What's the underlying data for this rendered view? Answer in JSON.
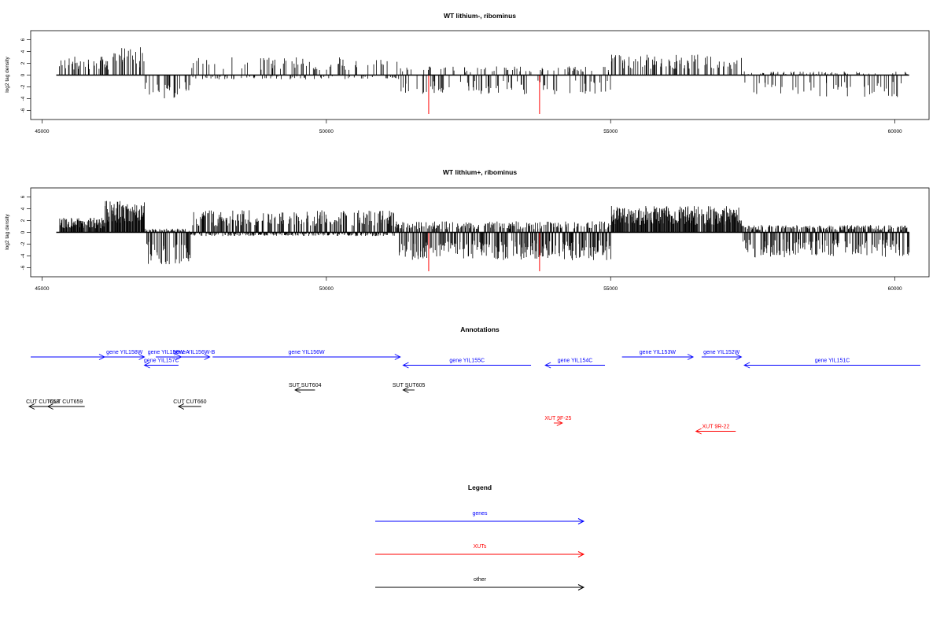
{
  "panels": [
    {
      "title": "WT lithium-, ribominus",
      "ylabel": "log2 tag density",
      "xticks": [
        45000,
        50000,
        55000,
        60000
      ],
      "yticks": [
        -6,
        -4,
        -2,
        0,
        2,
        4,
        6
      ]
    },
    {
      "title": "WT lithium+, ribominus",
      "ylabel": "log2 tag density",
      "xticks": [
        45000,
        50000,
        55000,
        60000
      ],
      "yticks": [
        -6,
        -4,
        -2,
        0,
        2,
        4,
        6
      ]
    }
  ],
  "chart_data": [
    {
      "type": "bar",
      "title": "WT lithium-, ribominus",
      "ylabel": "log2 tag density",
      "xlim": [
        44800,
        60600
      ],
      "ylim": [
        -7,
        7
      ],
      "baseline_range": [
        45250,
        60250
      ],
      "density": 0.35,
      "seed": 11,
      "regions": [
        {
          "from": 45300,
          "to": 46200,
          "pos": 2.5,
          "neg": 0
        },
        {
          "from": 46200,
          "to": 46800,
          "pos": 3.8,
          "neg": 0
        },
        {
          "from": 46800,
          "to": 47600,
          "pos": 0,
          "neg": -3.2
        },
        {
          "from": 47600,
          "to": 51300,
          "pos": 2.4,
          "neg": -0.6
        },
        {
          "from": 51300,
          "to": 55000,
          "pos": 1.2,
          "neg": -2.6
        },
        {
          "from": 55000,
          "to": 57300,
          "pos": 2.8,
          "neg": 0
        },
        {
          "from": 57300,
          "to": 60250,
          "pos": 0.5,
          "neg": -3.0
        }
      ],
      "highlights": [
        {
          "x": 51800,
          "value": -6.6,
          "color": "#ff0000"
        },
        {
          "x": 53750,
          "value": -6.6,
          "color": "#ff0000"
        }
      ]
    },
    {
      "type": "bar",
      "title": "WT lithium+, ribominus",
      "ylabel": "log2 tag density",
      "xlim": [
        44800,
        60600
      ],
      "ylim": [
        -7,
        7
      ],
      "baseline_range": [
        45250,
        60250
      ],
      "density": 0.95,
      "seed": 29,
      "regions": [
        {
          "from": 45300,
          "to": 46100,
          "pos": 2.0,
          "neg": 0
        },
        {
          "from": 46100,
          "to": 46800,
          "pos": 4.3,
          "neg": 0
        },
        {
          "from": 46800,
          "to": 47600,
          "pos": 0.5,
          "neg": -4.5
        },
        {
          "from": 47600,
          "to": 51200,
          "pos": 3.0,
          "neg": -0.5
        },
        {
          "from": 51200,
          "to": 55000,
          "pos": 1.5,
          "neg": -3.8
        },
        {
          "from": 55000,
          "to": 57300,
          "pos": 3.6,
          "neg": 0
        },
        {
          "from": 57300,
          "to": 60250,
          "pos": 1.0,
          "neg": -3.4
        }
      ],
      "highlights": [
        {
          "x": 51800,
          "value": -6.6,
          "color": "#ff0000"
        },
        {
          "x": 53750,
          "value": -6.6,
          "color": "#ff0000"
        }
      ]
    }
  ],
  "annotations": {
    "title": "Annotations",
    "xlim": [
      44800,
      60600
    ],
    "items": [
      {
        "label": "",
        "from": 44800,
        "to": 46100,
        "dir": "right",
        "row": 0,
        "color": "#0000ff"
      },
      {
        "label": "gene YIL158W",
        "from": 46100,
        "to": 46800,
        "dir": "right",
        "row": 0,
        "color": "#0000ff"
      },
      {
        "label": "gene YIL157C",
        "from": 46800,
        "to": 47400,
        "dir": "left",
        "row": 1,
        "color": "#0000ff"
      },
      {
        "label": "gene YIL156W-A",
        "from": 47000,
        "to": 47450,
        "dir": "right",
        "row": 0,
        "color": "#0000ff"
      },
      {
        "label": "gene YIL156W-B",
        "from": 47400,
        "to": 47950,
        "dir": "right",
        "row": 0,
        "color": "#0000ff"
      },
      {
        "label": "gene YIL156W",
        "from": 48000,
        "to": 51300,
        "dir": "right",
        "row": 0,
        "color": "#0000ff"
      },
      {
        "label": "gene YIL155C",
        "from": 51350,
        "to": 53600,
        "dir": "left",
        "row": 1,
        "color": "#0000ff"
      },
      {
        "label": "gene YIL154C",
        "from": 53850,
        "to": 54900,
        "dir": "left",
        "row": 1,
        "color": "#0000ff"
      },
      {
        "label": "gene YIL153W",
        "from": 55200,
        "to": 56450,
        "dir": "right",
        "row": 0,
        "color": "#0000ff"
      },
      {
        "label": "gene YIL152W",
        "from": 56600,
        "to": 57300,
        "dir": "right",
        "row": 0,
        "color": "#0000ff"
      },
      {
        "label": "gene YIL151C",
        "from": 57350,
        "to": 60600,
        "dir": "left",
        "row": 1,
        "color": "#0000ff"
      },
      {
        "label": "SUT SUT604",
        "from": 49450,
        "to": 49800,
        "dir": "left",
        "row": 4,
        "color": "#000000"
      },
      {
        "label": "SUT SUT605",
        "from": 51350,
        "to": 51550,
        "dir": "left",
        "row": 4,
        "color": "#000000"
      },
      {
        "label": "CUT CUT658",
        "from": 44720,
        "to": 45250,
        "dir": "left",
        "row": 6,
        "color": "#000000"
      },
      {
        "label": "CUT CUT659",
        "from": 45100,
        "to": 45750,
        "dir": "left",
        "row": 6,
        "color": "#000000"
      },
      {
        "label": "CUT CUT660",
        "from": 47400,
        "to": 47800,
        "dir": "left",
        "row": 6,
        "color": "#000000"
      },
      {
        "label": "XUT 9F-25",
        "from": 54000,
        "to": 54150,
        "dir": "right",
        "row": 8,
        "color": "#ff0000"
      },
      {
        "label": "XUT 9R-22",
        "from": 56500,
        "to": 57200,
        "dir": "left",
        "row": 9,
        "color": "#ff0000"
      }
    ]
  },
  "legend": {
    "title": "Legend",
    "items": [
      {
        "label": "genes",
        "color": "#0000ff"
      },
      {
        "label": "XUTs",
        "color": "#ff0000"
      },
      {
        "label": "other",
        "color": "#000000"
      }
    ]
  }
}
